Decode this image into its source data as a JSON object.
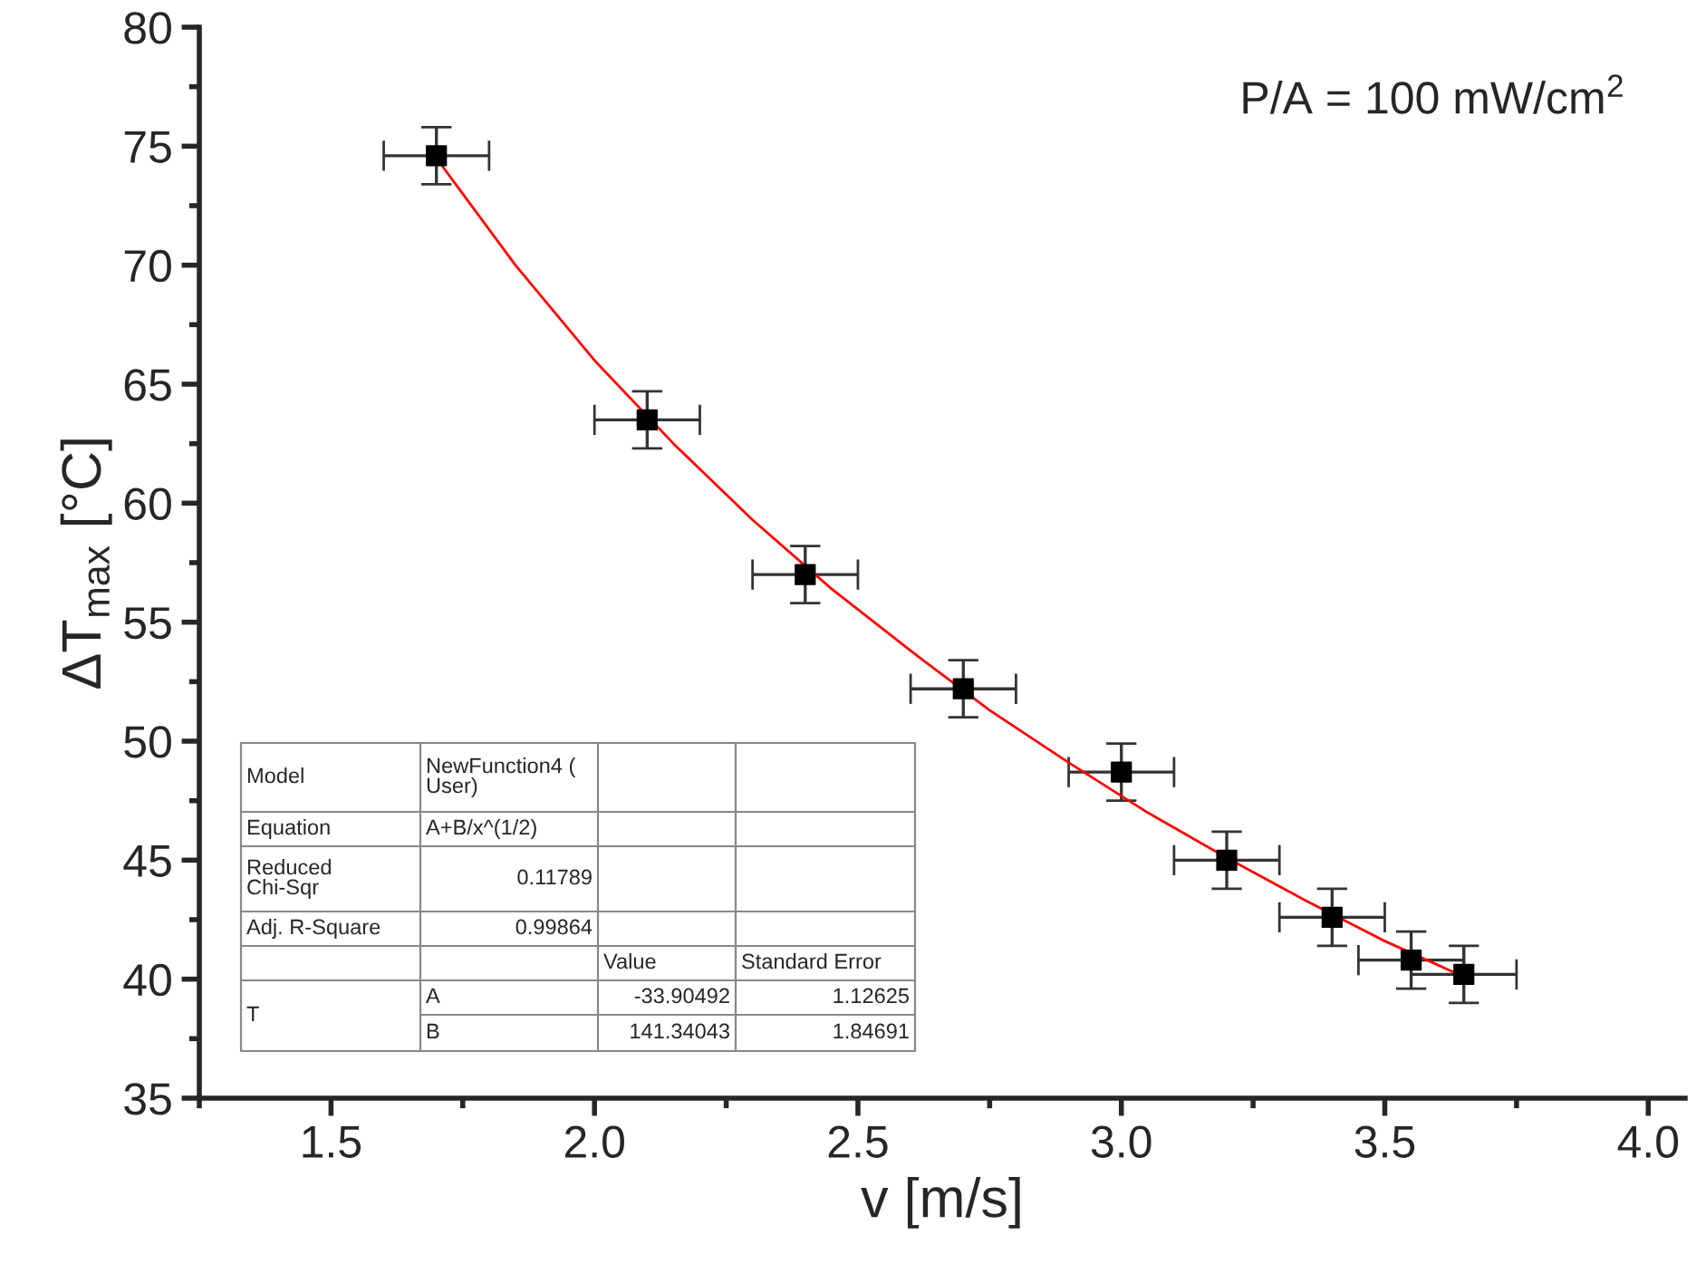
{
  "chart_data": {
    "type": "scatter",
    "xlabel": "v [m/s]",
    "ylabel": "ΔT$_{max}$ [°C]",
    "xlim": [
      1.25,
      4.07
    ],
    "ylim": [
      35,
      80
    ],
    "xticks": [
      {
        "value": 1.25,
        "label": null
      },
      1.5,
      {
        "value": 1.75,
        "label": null
      },
      {
        "value": 2.0,
        "label": "2.0"
      },
      {
        "value": 2.25,
        "label": null
      },
      2.5,
      {
        "value": 2.75,
        "label": null
      },
      {
        "value": 3.0,
        "label": "3.0"
      },
      {
        "value": 3.25,
        "label": null
      },
      3.5,
      {
        "value": 3.75,
        "label": null
      },
      {
        "value": 4.0,
        "label": "4.0"
      }
    ],
    "yticks": [
      35,
      {
        "value": 37.5,
        "label": null
      },
      40,
      {
        "value": 42.5,
        "label": null
      },
      45,
      {
        "value": 47.5,
        "label": null
      },
      50,
      {
        "value": 52.5,
        "label": null
      },
      55,
      {
        "value": 57.5,
        "label": null
      },
      60,
      {
        "value": 62.5,
        "label": null
      },
      65,
      {
        "value": 67.5,
        "label": null
      },
      70,
      {
        "value": 72.5,
        "label": null
      },
      75,
      {
        "value": 77.5,
        "label": null
      },
      80
    ],
    "grid": false,
    "legend": false,
    "series": [
      {
        "color": "#000000",
        "marker": "square",
        "x": [
          1.7,
          2.1,
          2.4,
          2.7,
          3.0,
          3.2,
          3.4,
          3.55,
          3.65
        ],
        "values": [
          74.6,
          63.5,
          57.0,
          52.2,
          48.7,
          45.0,
          42.6,
          40.8,
          40.2
        ],
        "errors": [
          1.2,
          1.2,
          1.2,
          1.2,
          1.2,
          1.2,
          1.2,
          1.2,
          1.2
        ],
        "xerrors": [
          0.1,
          0.1,
          0.1,
          0.1,
          0.1,
          0.1,
          0.1,
          0.1,
          0.1
        ]
      },
      {
        "type": "line",
        "color": "#ff0000",
        "line_style": "solid",
        "marker": "none",
        "x": [
          1.7,
          1.85,
          2.0,
          2.15,
          2.3,
          2.45,
          2.6,
          2.75,
          2.9,
          3.05,
          3.2,
          3.35,
          3.5,
          3.65
        ],
        "values": [
          74.5,
          70.0,
          66.0,
          62.5,
          59.3,
          56.4,
          53.8,
          51.3,
          49.1,
          47.0,
          45.1,
          43.3,
          41.6,
          40.1
        ]
      }
    ],
    "annotations": [
      "P/A = 100 mW/cm$^{2}$",
      "Model",
      "NewFunction4 (\nUser)",
      "Equation",
      "A+B/x^(1/2)",
      "Reduced\nChi-Sqr",
      "0.11789",
      "Adj. R-Square",
      "0.99864",
      "Value",
      "Standard Error",
      "T",
      "A",
      "-33.90492",
      "1.12625",
      "B",
      "141.34043",
      "1.84691"
    ]
  }
}
